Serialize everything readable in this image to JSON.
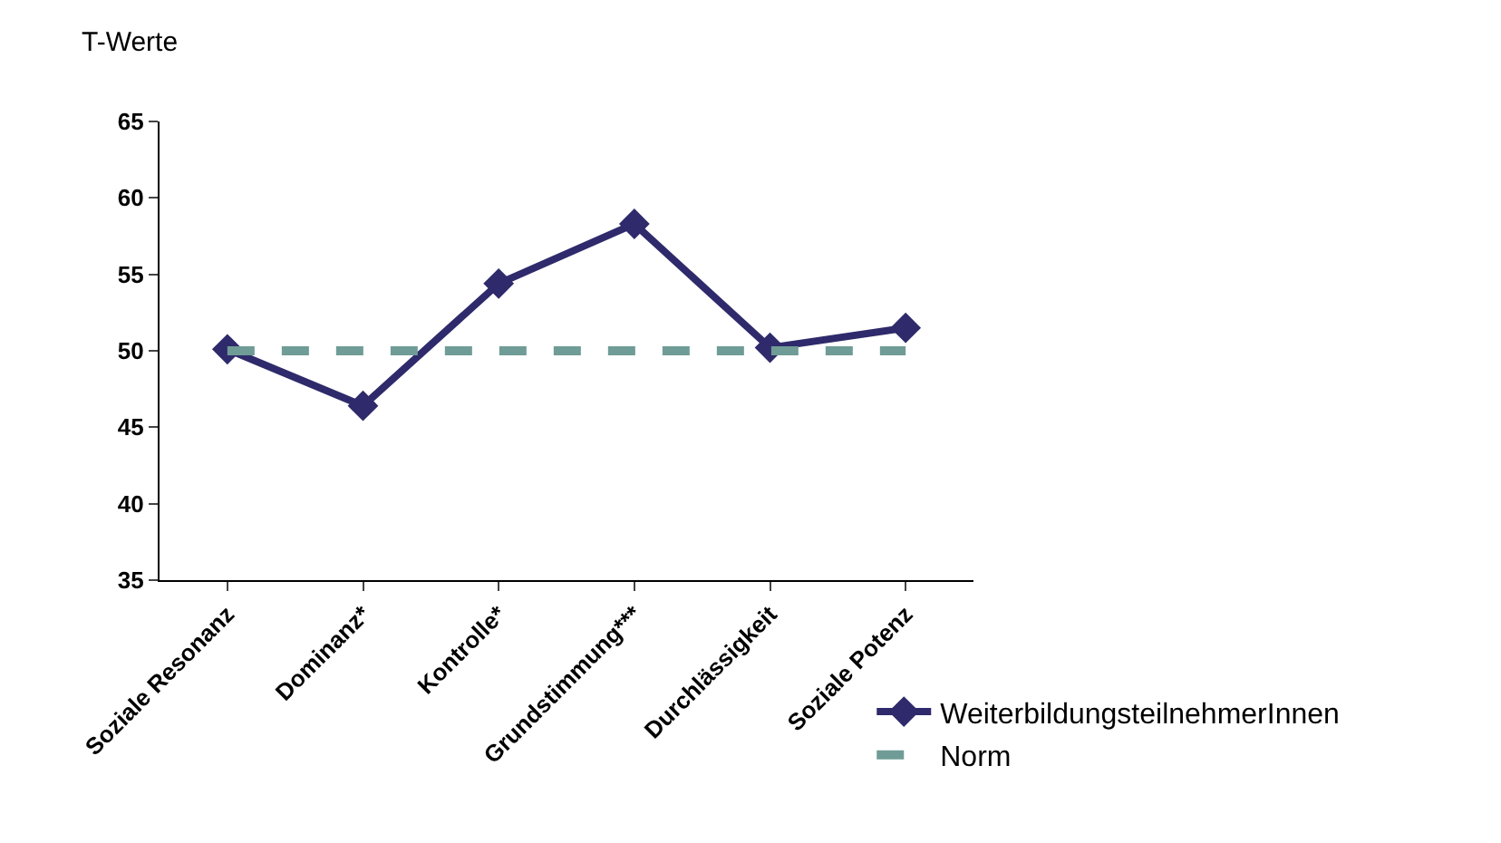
{
  "chart_data": {
    "type": "line",
    "ylabel": "T-Werte",
    "categories": [
      "Soziale Resonanz",
      "Dominanz*",
      "Kontrolle*",
      "Grundstimmung***",
      "Durchlässigkeit",
      "Soziale Potenz"
    ],
    "series": [
      {
        "name": "WeiterbildungsteilnehmerInnen",
        "color": "#2e2a6b",
        "values": [
          50.1,
          46.4,
          54.4,
          58.3,
          50.2,
          51.5
        ],
        "marker": "diamond",
        "line_style": "solid"
      },
      {
        "name": "Norm",
        "color": "#6f9c96",
        "values": [
          50,
          50,
          50,
          50,
          50,
          50
        ],
        "marker": "none",
        "line_style": "dashed"
      }
    ],
    "ylim": [
      35,
      65
    ],
    "yticks": [
      35,
      40,
      45,
      50,
      55,
      60,
      65
    ],
    "legend": "bottom right"
  }
}
